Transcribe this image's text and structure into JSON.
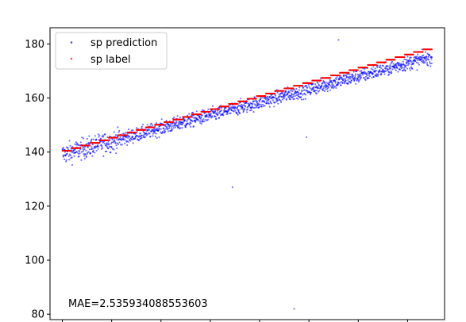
{
  "chart_data": {
    "type": "scatter",
    "title": "",
    "xlabel": "",
    "ylabel": "",
    "xlim": [
      -50,
      1550
    ],
    "ylim": [
      78,
      186
    ],
    "y_ticks": [
      80,
      100,
      120,
      140,
      160,
      180
    ],
    "x_ticks": [
      0,
      200,
      400,
      600,
      800,
      1000,
      1200,
      1400
    ],
    "x_tick_labels_visible": false,
    "grid": false,
    "legend_position": "upper-left",
    "annotation": "MAE=2.535934088553603",
    "label_range": [
      140.5,
      178
    ],
    "label_step_count": 40,
    "n_points": 1500,
    "series": [
      {
        "name": "sp prediction",
        "color": "#0000ff",
        "marker": "dot",
        "alpha": 0.55
      },
      {
        "name": "sp label",
        "color": "#ff0000",
        "marker": "dot",
        "alpha": 0.55
      }
    ],
    "outliers": [
      {
        "x": 1120,
        "y": 181.5
      },
      {
        "x": 690,
        "y": 127
      },
      {
        "x": 940,
        "y": 82
      },
      {
        "x": 990,
        "y": 145.5
      }
    ]
  }
}
